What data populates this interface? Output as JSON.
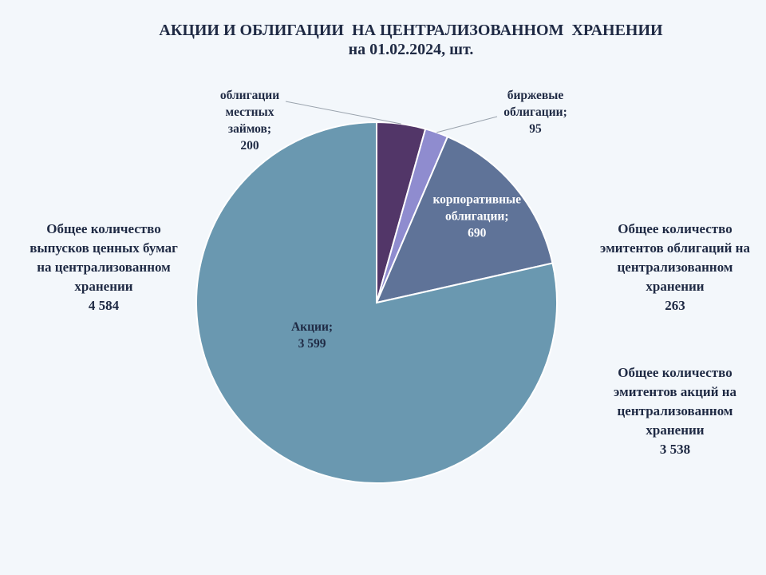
{
  "title": {
    "line1": "АКЦИИ И ОБЛИГАЦИИ  НА ЦЕНТРАЛИЗОВАННОМ  ХРАНЕНИИ",
    "line2": "на 01.02.2024, шт."
  },
  "chart_data": {
    "type": "pie",
    "title": "АКЦИИ И ОБЛИГАЦИИ  НА ЦЕНТРАЛИЗОВАННОМ  ХРАНЕНИИ на 01.02.2024, шт.",
    "categories": [
      "облигации местных займов",
      "биржевые облигации",
      "корпоративные облигации",
      "Акции"
    ],
    "values": [
      200,
      95,
      690,
      3599
    ],
    "colors": [
      "#523668",
      "#8f8ccf",
      "#5f7398",
      "#6a98b0"
    ],
    "labels": [
      {
        "lines": [
          "облигации",
          "местных",
          "займов;"
        ],
        "value": "200"
      },
      {
        "lines": [
          "биржевые",
          "облигации;"
        ],
        "value": "95"
      },
      {
        "lines": [
          "корпоративные",
          "облигации;"
        ],
        "value": "690"
      },
      {
        "lines": [
          "Акции;"
        ],
        "value": "3 599"
      }
    ]
  },
  "notes": {
    "left": {
      "text": "Общее количество выпусков ценных бумаг на централизованном хранении",
      "value": "4 584"
    },
    "right1": {
      "text": "Общее количество эмитентов облигаций на централизованном хранении",
      "value": "263"
    },
    "right2": {
      "text": "Общее количество эмитентов акций на централизованном хранении",
      "value": "3 538"
    }
  }
}
